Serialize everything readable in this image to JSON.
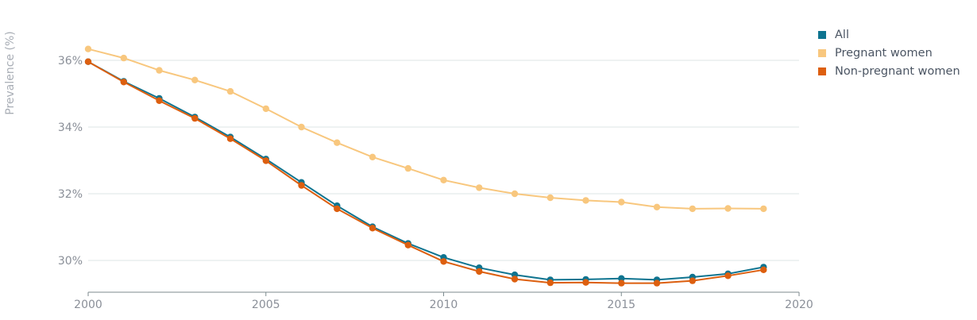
{
  "chart_data": {
    "type": "line",
    "ylabel": "Prevalence (%)",
    "xlim": [
      2000,
      2020
    ],
    "ylim": [
      29,
      37
    ],
    "x_ticks": [
      2000,
      2005,
      2010,
      2015,
      2020
    ],
    "y_ticks": [
      30,
      32,
      34,
      36
    ],
    "y_tick_labels": [
      "30%",
      "32%",
      "34%",
      "36%"
    ],
    "grid": "horizontal",
    "legend_position": "top-right",
    "x": [
      2000,
      2001,
      2002,
      2003,
      2004,
      2005,
      2006,
      2007,
      2008,
      2009,
      2010,
      2011,
      2012,
      2013,
      2014,
      2015,
      2016,
      2017,
      2018,
      2019
    ],
    "series": [
      {
        "name": "All",
        "color": "#0e7490",
        "values": [
          35.96,
          35.37,
          34.86,
          34.3,
          33.7,
          33.04,
          32.34,
          31.64,
          31.01,
          30.51,
          30.09,
          29.78,
          29.57,
          29.42,
          29.43,
          29.46,
          29.42,
          29.5,
          29.6,
          29.8
        ]
      },
      {
        "name": "Pregnant women",
        "color": "#f8c77e",
        "values": [
          36.34,
          36.07,
          35.7,
          35.41,
          35.07,
          34.55,
          34.0,
          33.53,
          33.1,
          32.76,
          32.41,
          32.18,
          32.0,
          31.88,
          31.8,
          31.75,
          31.6,
          31.55,
          31.56,
          31.55
        ]
      },
      {
        "name": "Non-pregnant women",
        "color": "#dd5f0f",
        "values": [
          35.96,
          35.35,
          34.79,
          34.26,
          33.65,
          32.99,
          32.25,
          31.55,
          30.97,
          30.46,
          29.97,
          29.67,
          29.44,
          29.33,
          29.34,
          29.32,
          29.32,
          29.39,
          29.54,
          29.72
        ]
      }
    ]
  }
}
